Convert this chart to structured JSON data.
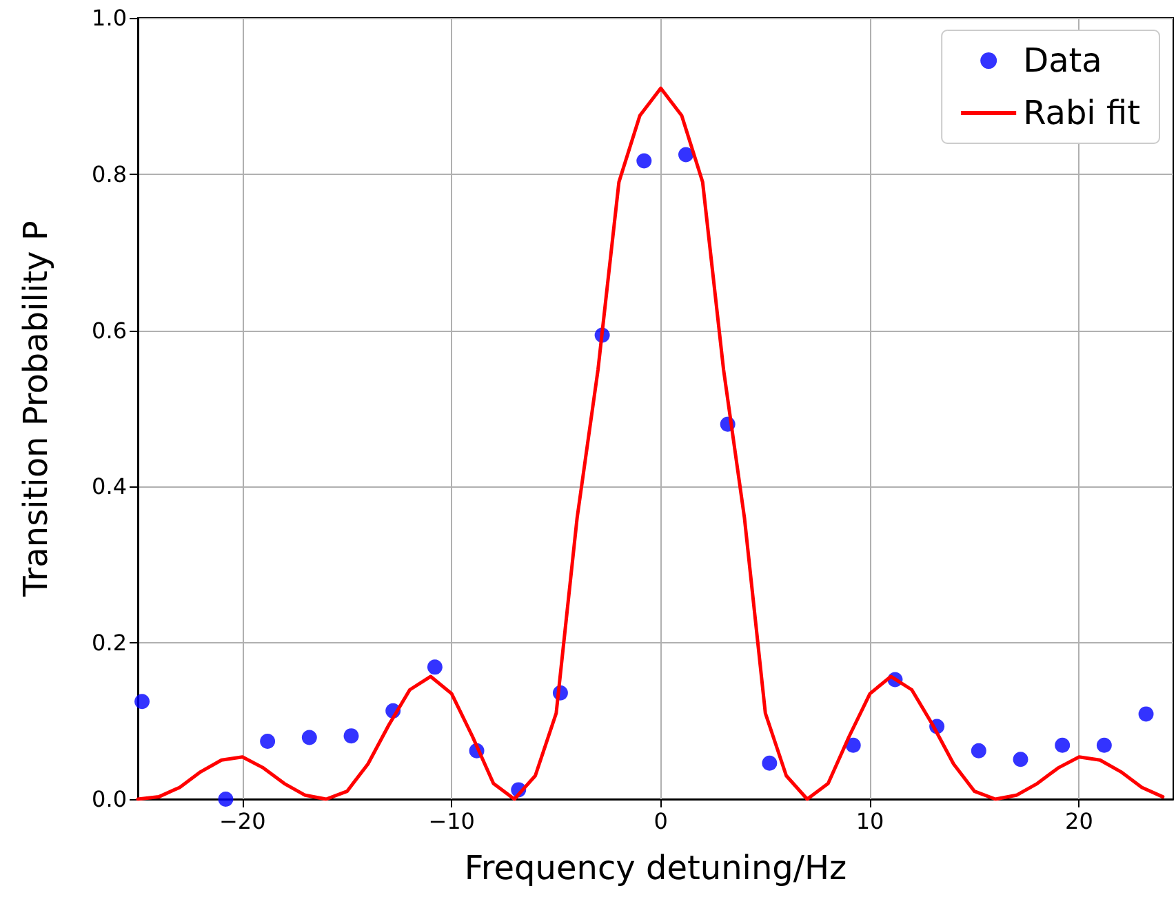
{
  "chart_data": {
    "type": "scatter",
    "xlabel": "Frequency detuning/Hz",
    "ylabel": "Transition Probability P",
    "xlim": [
      -25,
      24.5
    ],
    "ylim": [
      0,
      1
    ],
    "xticks": [
      {
        "value": -20,
        "label": "−20"
      },
      {
        "value": -10,
        "label": "−10"
      },
      0,
      10,
      20
    ],
    "yticks": [
      {
        "value": 0,
        "label": "0.0"
      },
      0.2,
      0.4,
      0.6,
      0.8,
      {
        "value": 1,
        "label": "1.0"
      }
    ],
    "grid": true,
    "legend": "top right",
    "series": [
      {
        "name": "Data",
        "color": "#0000ff",
        "marker": "circle",
        "x": [
          -24.8,
          -20.8,
          -18.8,
          -16.8,
          -14.8,
          -12.8,
          -10.8,
          -8.8,
          -6.8,
          -4.8,
          -2.8,
          -0.8,
          1.2,
          3.2,
          5.2,
          9.2,
          11.2,
          13.2,
          15.2,
          17.2,
          19.2,
          21.2,
          23.2
        ],
        "values": [
          0.125,
          0.0,
          0.074,
          0.079,
          0.081,
          0.113,
          0.169,
          0.062,
          0.012,
          0.136,
          0.594,
          0.817,
          0.825,
          0.48,
          0.046,
          0.069,
          0.153,
          0.093,
          0.062,
          0.051,
          0.069,
          0.069,
          0.109
        ]
      },
      {
        "name": "Rabi fit",
        "type": "line",
        "color": "#ff0000",
        "marker": "none",
        "line_style": "solid",
        "x": [
          -25,
          -24,
          -23,
          -22,
          -21,
          -20,
          -19,
          -18,
          -17,
          -16,
          -15,
          -14,
          -13,
          -12,
          -11,
          -10,
          -9,
          -8,
          -7,
          -6,
          -5,
          -4,
          -3,
          -2,
          -1,
          0,
          1,
          2,
          3,
          4,
          5,
          6,
          7,
          8,
          9,
          10,
          11,
          12,
          13,
          14,
          15,
          16,
          17,
          18,
          19,
          20,
          21,
          22,
          23,
          24
        ],
        "values": [
          0.0,
          0.003,
          0.015,
          0.035,
          0.05,
          0.054,
          0.04,
          0.02,
          0.005,
          0.0,
          0.01,
          0.045,
          0.095,
          0.14,
          0.157,
          0.135,
          0.08,
          0.02,
          0.0,
          0.03,
          0.11,
          0.36,
          0.55,
          0.79,
          0.875,
          0.91,
          0.875,
          0.79,
          0.55,
          0.36,
          0.11,
          0.03,
          0.0,
          0.02,
          0.08,
          0.135,
          0.157,
          0.14,
          0.095,
          0.045,
          0.01,
          0.0,
          0.005,
          0.02,
          0.04,
          0.054,
          0.05,
          0.035,
          0.015,
          0.003
        ]
      }
    ]
  }
}
